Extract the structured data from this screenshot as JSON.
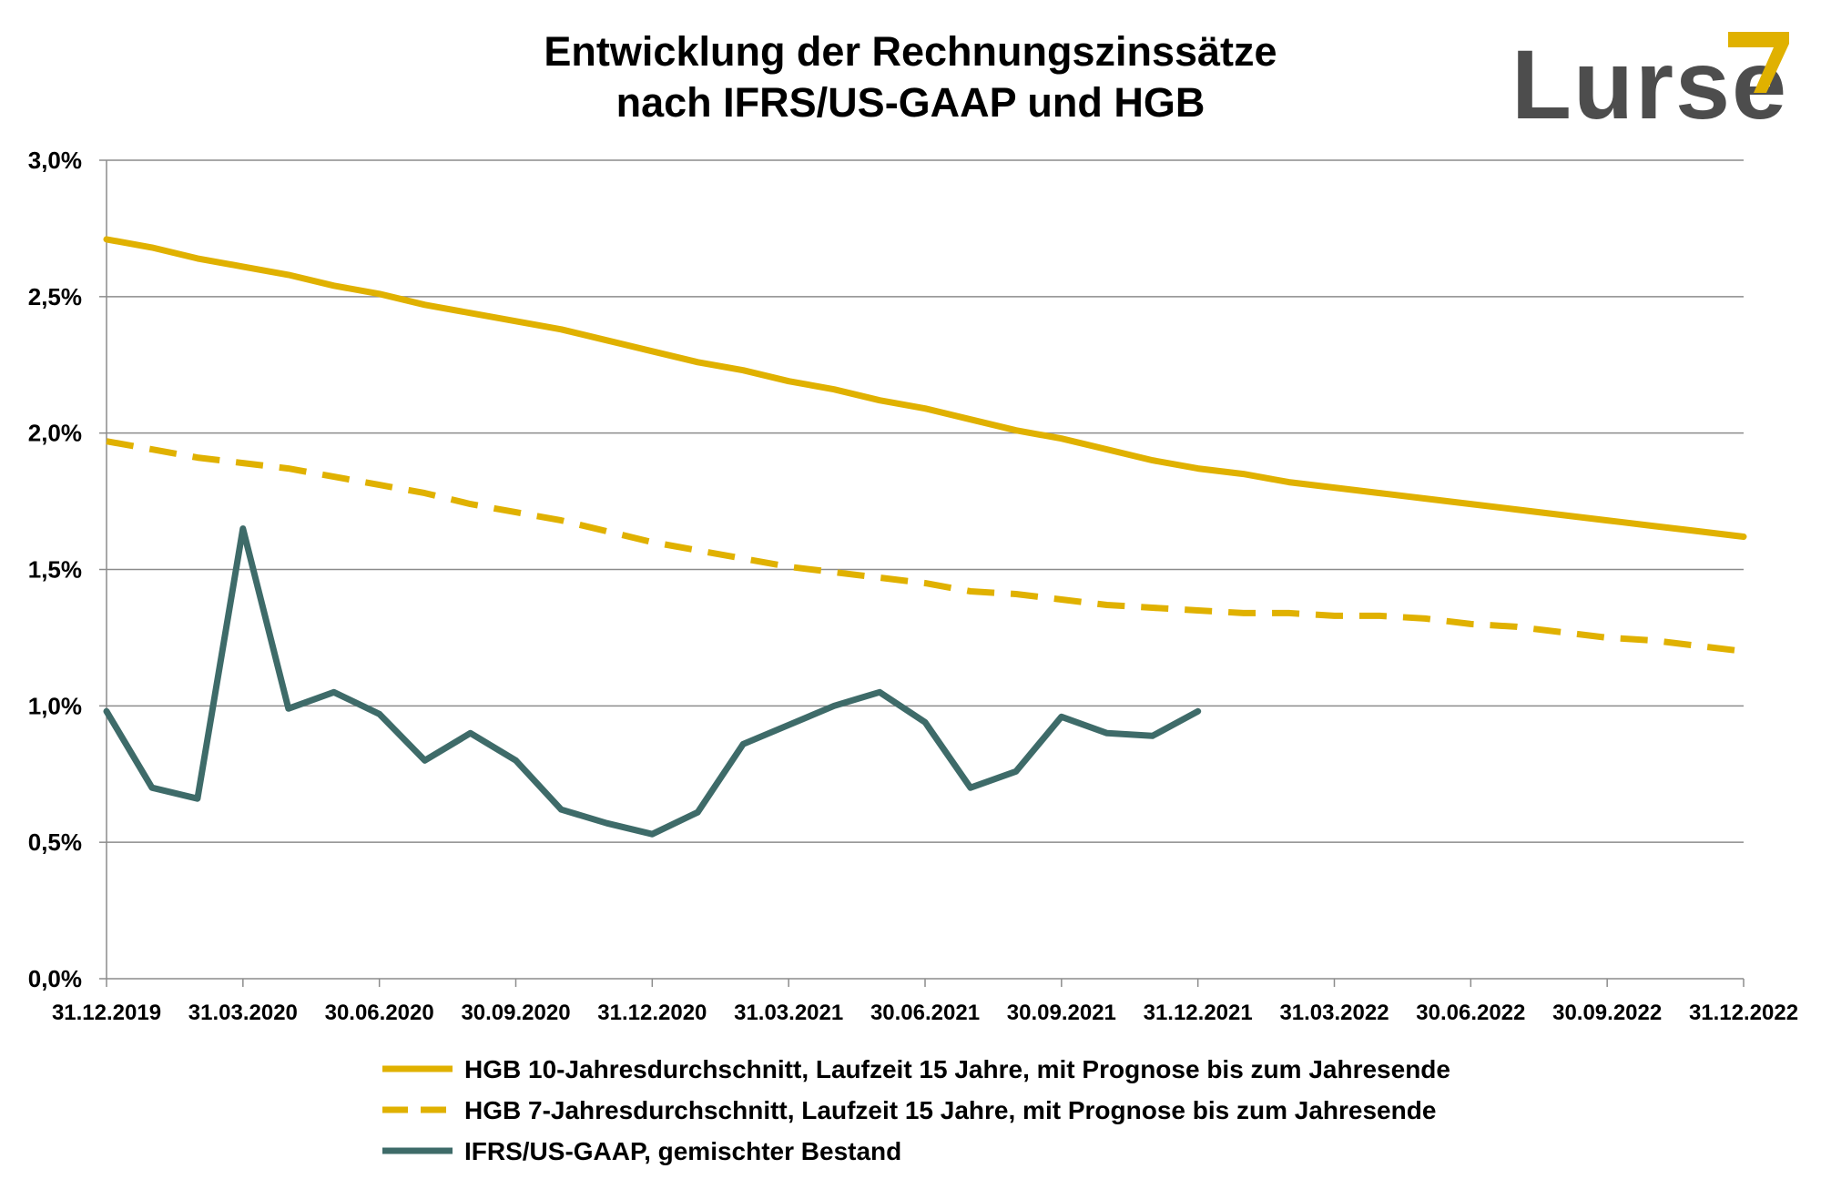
{
  "logo": {
    "text": "Lurse",
    "text_color": "#4d4d4d",
    "accent_color": "#e0b100"
  },
  "chart_data": {
    "type": "line",
    "title": [
      "Entwicklung der Rechnungszinssätze",
      "nach IFRS/US-GAAP und HGB"
    ],
    "xlabel": "",
    "ylabel": "",
    "x_ticks": [
      "31.12.2019",
      "31.03.2020",
      "30.06.2020",
      "30.09.2020",
      "31.12.2020",
      "31.03.2021",
      "30.06.2021",
      "30.09.2021",
      "31.12.2021",
      "31.03.2022",
      "30.06.2022",
      "30.09.2022",
      "31.12.2022"
    ],
    "y_ticks": [
      "0,0%",
      "0,5%",
      "1,0%",
      "1,5%",
      "2,0%",
      "2,5%",
      "3,0%"
    ],
    "ylim": [
      0,
      3.0
    ],
    "x_unit": "month index from 31.12.2019 (0) to 31.12.2022 (36)",
    "grid": "horizontal",
    "legend_position": "bottom",
    "series": [
      {
        "name": "HGB 10-Jahresdurchschnitt, Laufzeit 15 Jahre, mit Prognose bis zum Jahresende",
        "color": "#e0b100",
        "style": "solid",
        "x": [
          0,
          1,
          2,
          3,
          4,
          5,
          6,
          7,
          8,
          9,
          10,
          11,
          12,
          13,
          14,
          15,
          16,
          17,
          18,
          19,
          20,
          21,
          22,
          23,
          24,
          25,
          26,
          27,
          28,
          29,
          30,
          31,
          32,
          33,
          34,
          35,
          36
        ],
        "values": [
          2.71,
          2.68,
          2.64,
          2.61,
          2.58,
          2.54,
          2.51,
          2.47,
          2.44,
          2.41,
          2.38,
          2.34,
          2.3,
          2.26,
          2.23,
          2.19,
          2.16,
          2.12,
          2.09,
          2.05,
          2.01,
          1.98,
          1.94,
          1.9,
          1.87,
          1.85,
          1.82,
          1.8,
          1.78,
          1.76,
          1.74,
          1.72,
          1.7,
          1.68,
          1.66,
          1.64,
          1.62
        ]
      },
      {
        "name": "HGB 7-Jahresdurchschnitt, Laufzeit 15 Jahre, mit Prognose bis zum Jahresende",
        "color": "#e0b100",
        "style": "dashed",
        "x": [
          0,
          1,
          2,
          3,
          4,
          5,
          6,
          7,
          8,
          9,
          10,
          11,
          12,
          13,
          14,
          15,
          16,
          17,
          18,
          19,
          20,
          21,
          22,
          23,
          24,
          25,
          26,
          27,
          28,
          29,
          30,
          31,
          32,
          33,
          34,
          35,
          36
        ],
        "values": [
          1.97,
          1.94,
          1.91,
          1.89,
          1.87,
          1.84,
          1.81,
          1.78,
          1.74,
          1.71,
          1.68,
          1.64,
          1.6,
          1.57,
          1.54,
          1.51,
          1.49,
          1.47,
          1.45,
          1.42,
          1.41,
          1.39,
          1.37,
          1.36,
          1.35,
          1.34,
          1.34,
          1.33,
          1.33,
          1.32,
          1.3,
          1.29,
          1.27,
          1.25,
          1.24,
          1.22,
          1.2
        ]
      },
      {
        "name": "IFRS/US-GAAP, gemischter Bestand",
        "color": "#3e6b69",
        "style": "solid",
        "x": [
          0,
          1,
          2,
          3,
          4,
          5,
          6,
          7,
          8,
          9,
          10,
          11,
          12,
          13,
          14,
          15,
          16,
          17,
          18,
          19,
          20,
          21,
          22,
          23,
          24
        ],
        "values": [
          0.98,
          0.7,
          0.66,
          1.65,
          0.99,
          1.05,
          0.97,
          0.8,
          0.9,
          0.8,
          0.62,
          0.57,
          0.53,
          0.61,
          0.86,
          0.93,
          1.0,
          1.05,
          0.94,
          0.7,
          0.76,
          0.96,
          0.9,
          0.89,
          0.98
        ]
      }
    ]
  }
}
